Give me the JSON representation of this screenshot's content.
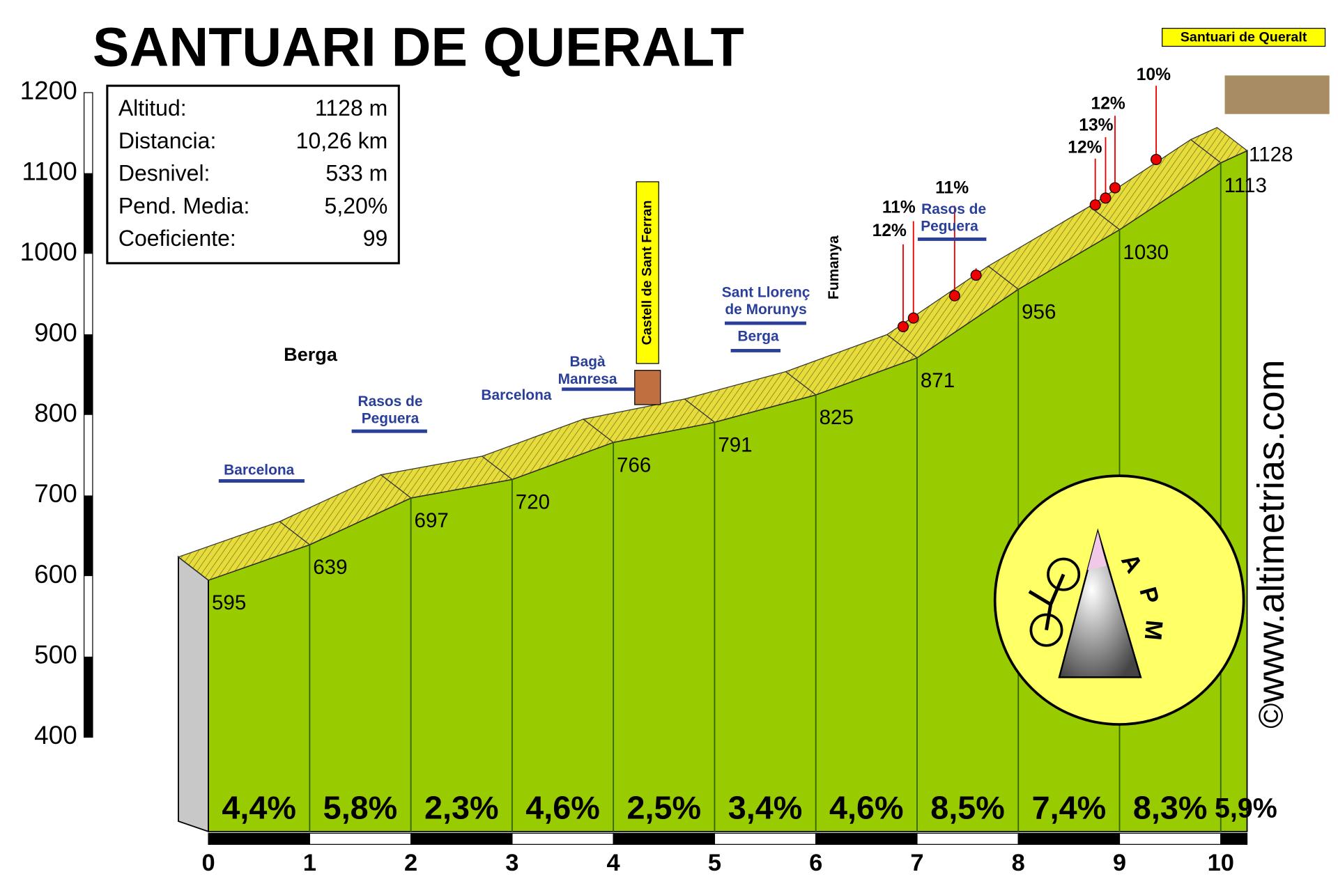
{
  "chart_data": {
    "type": "area",
    "title": "SANTUARI DE QUERALT",
    "info": [
      {
        "label": "Altitud:",
        "value": "1128 m"
      },
      {
        "label": "Distancia:",
        "value": "10,26 km"
      },
      {
        "label": "Desnivel:",
        "value": "533 m"
      },
      {
        "label": "Pend. Media:",
        "value": "5,20%"
      },
      {
        "label": "Coeficiente:",
        "value": "99"
      }
    ],
    "x": [
      0,
      1,
      2,
      3,
      4,
      5,
      6,
      7,
      8,
      9,
      10,
      10.26
    ],
    "values": [
      595,
      639,
      697,
      720,
      766,
      791,
      825,
      871,
      956,
      1030,
      1113,
      1128
    ],
    "color": "#99cc00",
    "road_color": "#e6dc3c",
    "gradients": {
      "values": [
        4.4,
        5.8,
        2.3,
        4.6,
        2.5,
        3.4,
        4.6,
        8.5,
        7.4,
        8.3,
        5.9
      ],
      "value_labels": [
        "4,4%",
        "5,8%",
        "2,3%",
        "4,6%",
        "2,5%",
        "3,4%",
        "4,6%",
        "8,5%",
        "7,4%",
        "8,3%",
        "5,9%"
      ]
    },
    "xlim": [
      0,
      10.26
    ],
    "ylim": [
      400,
      1200
    ],
    "xticks": [
      0,
      1,
      2,
      3,
      4,
      5,
      6,
      7,
      8,
      9,
      10
    ],
    "yticks": [
      400,
      500,
      600,
      700,
      800,
      900,
      1000,
      1100,
      1200
    ],
    "annotations": [
      "Berga",
      "Rasos de",
      "Peguera",
      "Barcelona",
      "Barcelona",
      "Bagà",
      "Manresa",
      "Castell de Sant Ferran",
      "Sant Llorenç",
      "de Morunys",
      "Berga",
      "Fumanya",
      "Rasos de",
      "Peguera",
      "12%",
      "11%",
      "11%",
      "12%",
      "13%",
      "12%",
      "10%",
      "Santuari de Queralt",
      "www.altimetrias.com",
      "©",
      "A",
      "P",
      "M"
    ]
  }
}
